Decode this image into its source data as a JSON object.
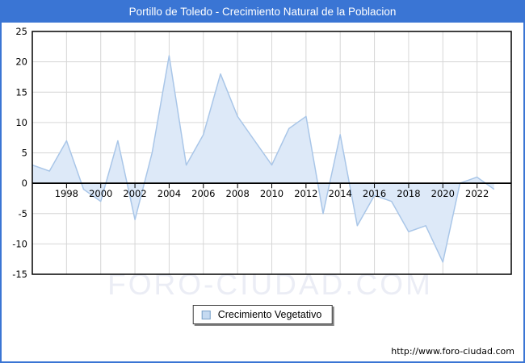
{
  "titlebar": {
    "title": "Portillo de Toledo - Crecimiento Natural de la Poblacion"
  },
  "legend": {
    "label": "Crecimiento Vegetativo"
  },
  "watermark": "FORO-CIUDAD.COM",
  "footer": {
    "url": "http://www.foro-ciudad.com"
  },
  "colors": {
    "frame_blue": "#3a75d4",
    "grid": "#d6d6d6",
    "area_fill": "#dde9f8",
    "area_line": "#a9c6e8",
    "axis_black": "#000000",
    "legend_marker_fill": "#c5daf1",
    "legend_marker_border": "#79a0c8",
    "watermark_color": "#ebedf5"
  },
  "chart_data": {
    "type": "area",
    "title": "Portillo de Toledo - Crecimiento Natural de la Poblacion",
    "xlabel": "",
    "ylabel": "",
    "x": [
      1996,
      1997,
      1998,
      1999,
      2000,
      2001,
      2002,
      2003,
      2004,
      2005,
      2006,
      2007,
      2008,
      2009,
      2010,
      2011,
      2012,
      2013,
      2014,
      2015,
      2016,
      2017,
      2018,
      2019,
      2020,
      2021,
      2022,
      2023
    ],
    "series": [
      {
        "name": "Crecimiento Vegetativo",
        "values": [
          3,
          2,
          7,
          -1,
          -3,
          7,
          -6,
          5,
          21,
          3,
          8,
          18,
          11,
          7,
          3,
          9,
          11,
          -5,
          8,
          -7,
          -2,
          -3,
          -8,
          -7,
          -13,
          0,
          1,
          -1
        ]
      }
    ],
    "xlim": [
      1996,
      2024
    ],
    "ylim": [
      -15,
      25
    ],
    "x_ticks": [
      1998,
      2000,
      2002,
      2004,
      2006,
      2008,
      2010,
      2012,
      2014,
      2016,
      2018,
      2020,
      2022
    ],
    "y_ticks": [
      25,
      20,
      15,
      10,
      5,
      0,
      -5,
      -10,
      -15
    ],
    "baseline": 0,
    "grid": true,
    "legend_position": "bottom-center"
  }
}
